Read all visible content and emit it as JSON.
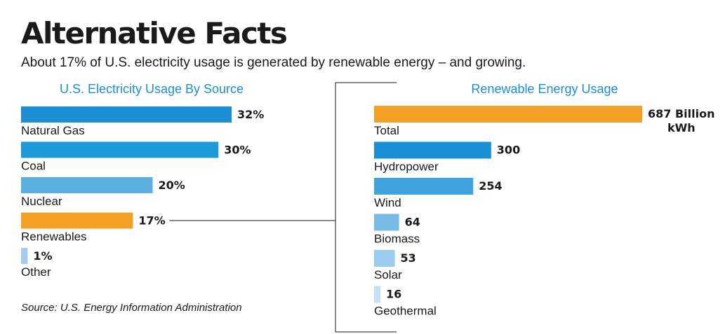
{
  "title": "Alternative Facts",
  "subtitle": "About 17% of U.S. electricity usage is generated by renewable energy – and growing.",
  "source": "Source: U.S. Energy Information Administration",
  "chart_data": [
    {
      "type": "bar",
      "orientation": "horizontal",
      "title": "U.S. Electricity Usage By Source",
      "title_color": "#1a8fd6",
      "categories": [
        "Natural Gas",
        "Coal",
        "Nuclear",
        "Renewables",
        "Other"
      ],
      "values": [
        32,
        30,
        20,
        17,
        1
      ],
      "value_labels": [
        "32%",
        "30%",
        "20%",
        "17%",
        "1%"
      ],
      "colors": [
        "#1a8fd6",
        "#1e9ad9",
        "#5aaee0",
        "#f4a024",
        "#a7cdee"
      ],
      "xlim": [
        0,
        32
      ]
    },
    {
      "type": "bar",
      "orientation": "horizontal",
      "title": "Renewable Energy Usage",
      "title_color": "#1a8fd6",
      "categories": [
        "Total",
        "Hydropower",
        "Wind",
        "Biomass",
        "Solar",
        "Geothermal"
      ],
      "values": [
        687,
        300,
        254,
        64,
        53,
        16
      ],
      "value_labels": [
        "687 Billion kWh",
        "300",
        "254",
        "64",
        "53",
        "16"
      ],
      "colors": [
        "#f4a024",
        "#1a8fd6",
        "#3ea3df",
        "#79bbe7",
        "#9bcbec",
        "#c6e0f5"
      ],
      "xlim": [
        0,
        687
      ]
    }
  ]
}
